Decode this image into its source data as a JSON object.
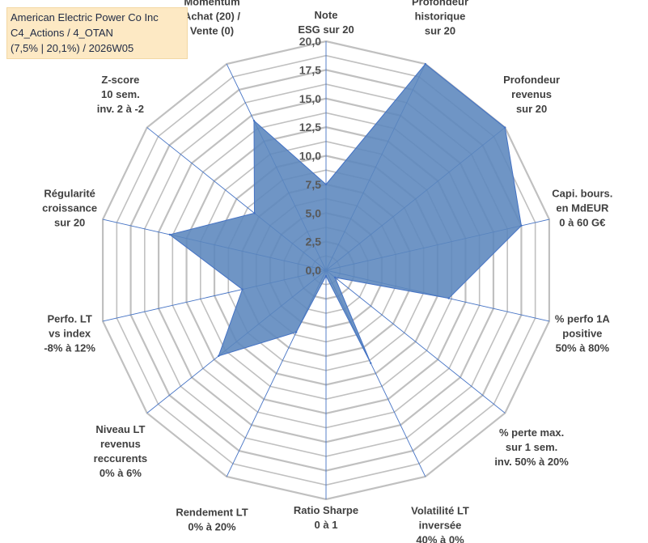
{
  "title_box": {
    "line1": "American Electric Power Co Inc",
    "line2": "C4_Actions / 4_OTAN",
    "line3": "(7,5% | 20,1%) / 2026W05"
  },
  "colors": {
    "fill": "#5b86bd",
    "stroke": "#4472c4",
    "grid": "#c0c0c0",
    "spoke": "#4472c4",
    "title_bg": "#fde9c4"
  },
  "chart_data": {
    "type": "radar",
    "r_min": 0,
    "r_max": 20,
    "tick_step": 2.5,
    "tick_labels": [
      "0,0",
      "2,5",
      "5,0",
      "7,5",
      "10,0",
      "12,5",
      "15,0",
      "17,5",
      "20,0"
    ],
    "axes": [
      {
        "label": [
          "Note",
          "ESG sur 20"
        ],
        "value": 7.5
      },
      {
        "label": [
          "Profondeur",
          "historique",
          "sur 20"
        ],
        "value": 20.0
      },
      {
        "label": [
          "Profondeur",
          "revenus",
          "sur 20"
        ],
        "value": 20.0
      },
      {
        "label": [
          "Capi. bours.",
          "en MdEUR",
          "0 à 60 G€"
        ],
        "value": 17.5
      },
      {
        "label": [
          "% perfo 1A",
          "positive",
          "50% à 80%"
        ],
        "value": 11.0
      },
      {
        "label": [
          "% perte max.",
          "sur 1 sem.",
          "inv. 50% à 20%"
        ],
        "value": 1.0
      },
      {
        "label": [
          "Volatilité LT",
          "inversée",
          "40% à 0%"
        ],
        "value": 9.0
      },
      {
        "label": [
          "Ratio Sharpe",
          "0 à 1"
        ],
        "value": 0.5
      },
      {
        "label": [
          "Rendement LT",
          "0% à 20%"
        ],
        "value": 6.0
      },
      {
        "label": [
          "Niveau LT",
          "revenus",
          "reccurents",
          "0% à 6%"
        ],
        "value": 12.0
      },
      {
        "label": [
          "Perfo. LT",
          "vs index",
          "-8% à 12%"
        ],
        "value": 7.5
      },
      {
        "label": [
          "Régularité",
          "croissance",
          "sur 20"
        ],
        "value": 14.0
      },
      {
        "label": [
          "Z-score",
          "10 sem.",
          "inv. 2 à -2"
        ],
        "value": 8.0
      },
      {
        "label": [
          "Momentum",
          "Achat (20) /",
          "Vente (0)"
        ],
        "value": 14.5
      }
    ]
  }
}
